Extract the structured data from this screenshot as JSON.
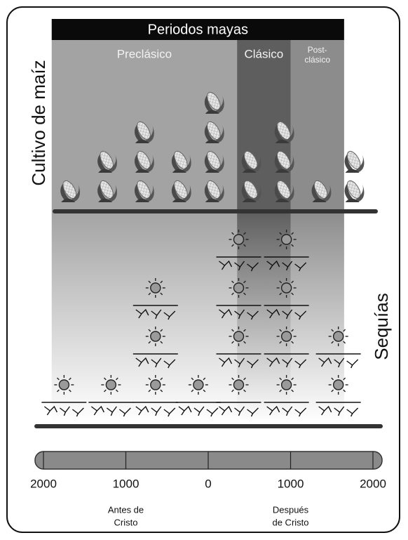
{
  "chart_data": {
    "type": "pictogram",
    "title": "Periodos mayas",
    "periods": [
      {
        "name": "Preclásico",
        "start": -1900,
        "end": 350,
        "color": "#a3a3a3"
      },
      {
        "name": "Clásico",
        "start": 350,
        "end": 1000,
        "color": "#5e5e5e"
      },
      {
        "name": "Post-clásico",
        "start": 1000,
        "end": 1650,
        "color": "#8c8c8c"
      }
    ],
    "series": [
      {
        "name": "Cultivo de maíz",
        "x": [
          -1700,
          -1250,
          -800,
          -350,
          50,
          500,
          900,
          1350,
          1750
        ],
        "values": [
          1,
          2,
          3,
          2,
          4,
          2,
          3,
          1,
          2
        ]
      },
      {
        "name": "Sequías",
        "x": [
          -1750,
          -1180,
          -640,
          -120,
          370,
          950,
          1580
        ],
        "values": [
          1,
          1,
          3,
          1,
          4,
          4,
          2
        ]
      }
    ],
    "xlim": [
      -2000,
      2000
    ],
    "xticks": [
      {
        "value": -2000,
        "label": "2000"
      },
      {
        "value": -1000,
        "label": "1000"
      },
      0,
      1000,
      2000
    ],
    "annotations": [
      [
        "Antes de",
        "Cristo"
      ],
      [
        "Después",
        "de Cristo"
      ]
    ]
  }
}
